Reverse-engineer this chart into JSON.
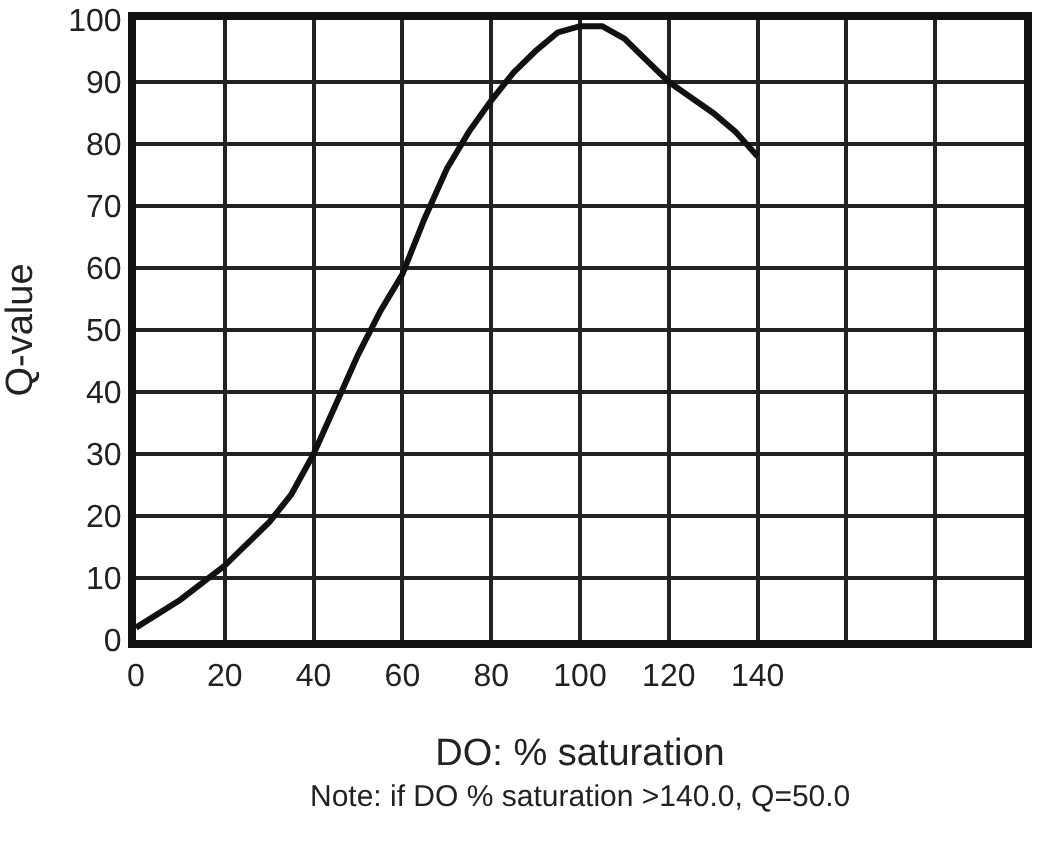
{
  "chart_data": {
    "type": "line",
    "xlabel": "DO: % saturation",
    "ylabel": "Q-value",
    "annotations": [
      "Note: if DO % saturation >140.0, Q=50.0"
    ],
    "x": [
      0,
      10,
      20,
      30,
      35,
      40,
      45,
      50,
      55,
      60,
      65,
      70,
      75,
      80,
      85,
      90,
      95,
      100,
      105,
      110,
      115,
      120,
      125,
      130,
      135,
      140
    ],
    "series": [
      {
        "color": "#111111",
        "values": [
          2,
          6.5,
          12,
          19,
          23.5,
          30,
          38,
          46,
          53,
          59,
          68,
          76,
          82,
          87,
          91.5,
          95,
          98,
          99,
          99,
          97,
          93.5,
          90,
          87.5,
          85,
          82,
          78
        ]
      }
    ],
    "xlim": [
      0,
      200
    ],
    "ylim": [
      0,
      100
    ],
    "xticks": [
      0,
      20,
      40,
      60,
      80,
      100,
      120,
      140,
      {
        "value": 160,
        "label": null
      },
      {
        "value": 180,
        "label": null
      },
      {
        "value": 200,
        "label": null
      }
    ],
    "yticks": [
      0,
      10,
      20,
      30,
      40,
      50,
      60,
      70,
      80,
      90,
      100
    ],
    "grid": true,
    "marker": "none",
    "line_style": "solid"
  }
}
